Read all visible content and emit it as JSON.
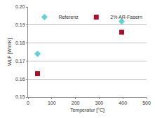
{
  "chart_data": {
    "type": "scatter",
    "x_label": "Temperatur [°C]",
    "y_label": "WLF [W/mK]",
    "series": [
      {
        "name": "Referenz",
        "color": "#5fd3d3",
        "marker": "diamond",
        "x": [
          40,
          395
        ],
        "values": [
          0.174,
          0.192
        ]
      },
      {
        "name": "2% AR-Fasern",
        "color": "#a8102c",
        "marker": "square",
        "x": [
          40,
          395
        ],
        "values": [
          0.163,
          0.186
        ]
      }
    ],
    "xlim": [
      0,
      500
    ],
    "xticks": [
      0,
      100,
      200,
      300,
      400,
      500
    ],
    "ylim": [
      0.15,
      0.2
    ],
    "yticks": [
      0.15,
      0.16,
      0.17,
      0.18,
      0.19,
      {
        "value": 0.2,
        "label": "0.20"
      }
    ],
    "grid": true,
    "legend": "top-left"
  }
}
